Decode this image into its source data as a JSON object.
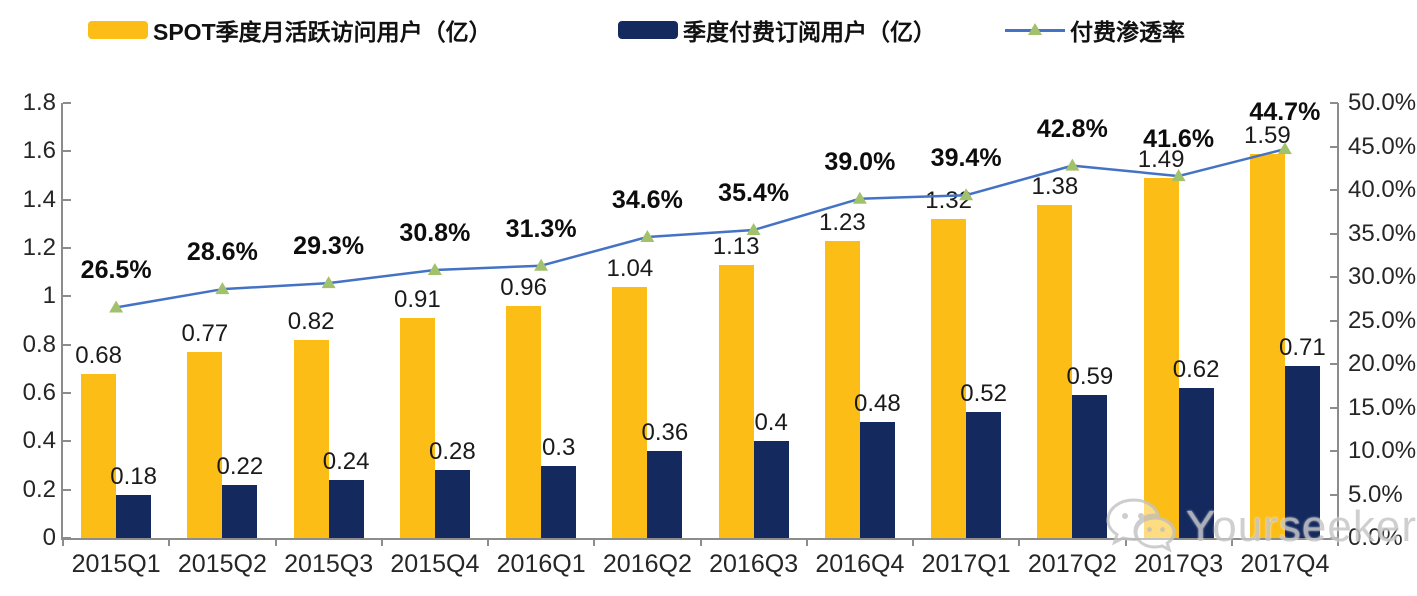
{
  "legend": [
    {
      "label": "SPOT季度月活跃访问用户（亿）",
      "type": "bar",
      "color": "#FBBD16"
    },
    {
      "label": "季度付费订阅用户（亿）",
      "type": "bar",
      "color": "#14295E"
    },
    {
      "label": "付费渗透率",
      "type": "line",
      "color": "#4472C4",
      "marker_color": "#A2C16C"
    }
  ],
  "chart_data": {
    "type": "bar+line combo",
    "categories": [
      "2015Q1",
      "2015Q2",
      "2015Q3",
      "2015Q4",
      "2016Q1",
      "2016Q2",
      "2016Q3",
      "2016Q4",
      "2017Q1",
      "2017Q2",
      "2017Q3",
      "2017Q4"
    ],
    "series": [
      {
        "name": "SPOT季度月活跃访问用户（亿）",
        "type": "bar",
        "axis": "left",
        "color": "#FBBD16",
        "values": [
          0.68,
          0.77,
          0.82,
          0.91,
          0.96,
          1.04,
          1.13,
          1.23,
          1.32,
          1.38,
          1.49,
          1.59
        ],
        "labels": [
          "0.68",
          "0.77",
          "0.82",
          "0.91",
          "0.96",
          "1.04",
          "1.13",
          "1.23",
          "1.32",
          "1.38",
          "1.49",
          "1.59"
        ]
      },
      {
        "name": "季度付费订阅用户（亿）",
        "type": "bar",
        "axis": "left",
        "color": "#14295E",
        "values": [
          0.18,
          0.22,
          0.24,
          0.28,
          0.3,
          0.36,
          0.4,
          0.48,
          0.52,
          0.59,
          0.62,
          0.71
        ],
        "labels": [
          "0.18",
          "0.22",
          "0.24",
          "0.28",
          "0.3",
          "0.36",
          "0.4",
          "0.48",
          "0.52",
          "0.59",
          "0.62",
          "0.71"
        ]
      },
      {
        "name": "付费渗透率",
        "type": "line",
        "axis": "right",
        "color": "#4472C4",
        "marker": "triangle",
        "marker_color": "#A2C16C",
        "values": [
          26.5,
          28.6,
          29.3,
          30.8,
          31.3,
          34.6,
          35.4,
          39.0,
          39.4,
          42.8,
          41.6,
          44.7
        ],
        "labels": [
          "26.5%",
          "28.6%",
          "29.3%",
          "30.8%",
          "31.3%",
          "34.6%",
          "35.4%",
          "39.0%",
          "39.4%",
          "42.8%",
          "41.6%",
          "44.7%"
        ]
      }
    ],
    "left_axis": {
      "min": 0,
      "max": 1.8,
      "tick_labels": [
        "1.8",
        "1.6",
        "1.4",
        "1.2",
        "1",
        "0.8",
        "0.6",
        "0.4",
        "0.2",
        "0"
      ]
    },
    "right_axis": {
      "min": 0,
      "max": 50,
      "tick_labels": [
        "50.0%",
        "45.0%",
        "40.0%",
        "35.0%",
        "30.0%",
        "25.0%",
        "20.0%",
        "15.0%",
        "10.0%",
        "5.0%",
        "0.0%"
      ]
    },
    "grid": false,
    "legend_position": "top"
  },
  "watermark": {
    "text": "Yourseeker",
    "icon": "wechat-icon"
  }
}
